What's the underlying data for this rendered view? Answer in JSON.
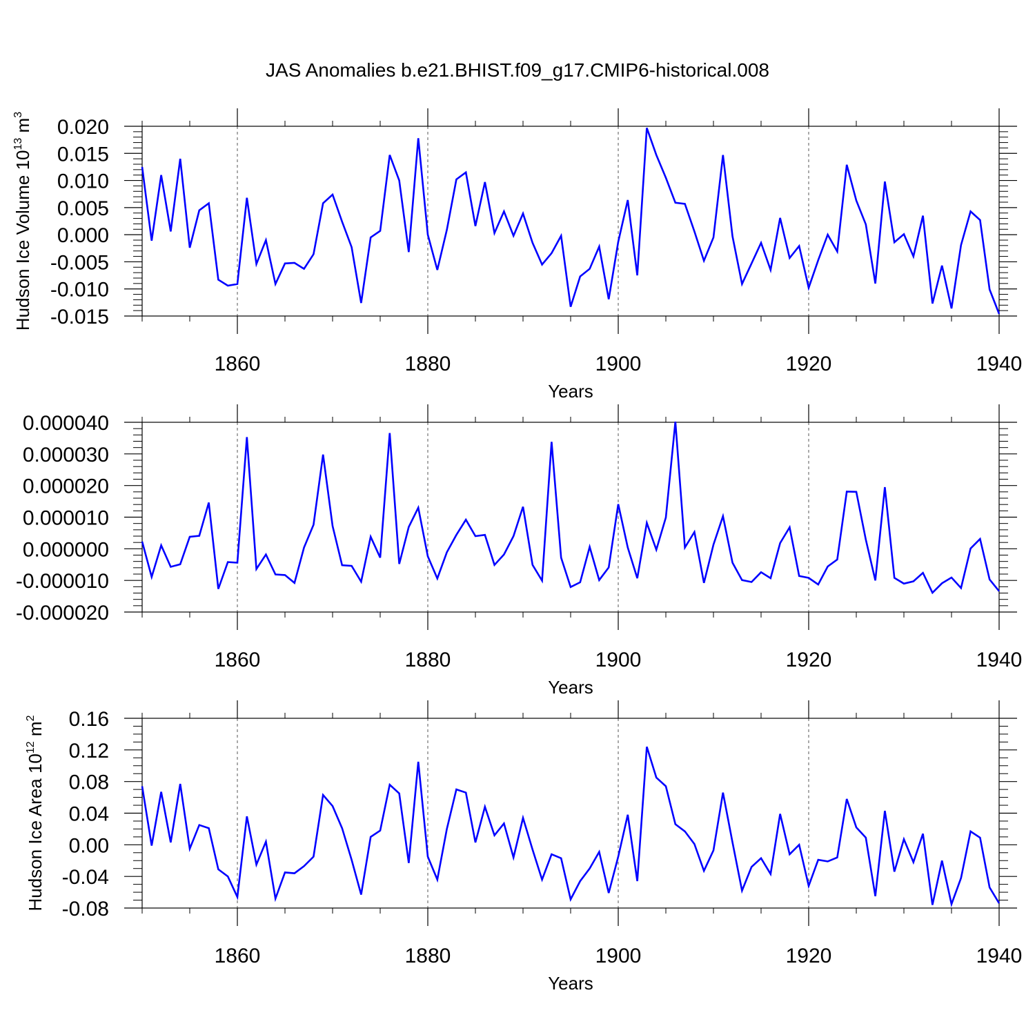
{
  "title": "JAS Anomalies b.e21.BHIST.f09_g17.CMIP6-historical.008",
  "line_color": "#0000ff",
  "chart_data": [
    {
      "type": "line",
      "name": "volume-panel",
      "title": "",
      "xlabel": "Years",
      "ylabel": "Hudson Ice Volume 10",
      "ylabel_exp": "13",
      "ylabel_unit": " m",
      "ylabel_unit_exp": "3",
      "xlim": [
        1850,
        1940
      ],
      "ylim": [
        -0.015,
        0.02
      ],
      "yticks": [
        -0.015,
        -0.01,
        -0.005,
        0.0,
        0.005,
        0.01,
        0.015,
        0.02
      ],
      "ytick_labels": [
        "-0.015",
        "-0.010",
        "-0.005",
        "0.000",
        "0.005",
        "0.010",
        "0.015",
        "0.020"
      ],
      "xticks": [
        1860,
        1880,
        1900,
        1920,
        1940
      ],
      "xtick_labels": [
        "1860",
        "1880",
        "1900",
        "1920",
        "1940"
      ],
      "grid_x": [
        1860,
        1880,
        1900,
        1920
      ],
      "series": [
        {
          "name": "Hudson Ice Volume",
          "x_start": 1850,
          "values": [
            0.0125,
            -0.0011,
            0.011,
            0.0006,
            0.014,
            -0.0024,
            0.0045,
            0.0058,
            -0.0083,
            -0.0094,
            -0.0091,
            0.0068,
            -0.0054,
            -0.001,
            -0.0091,
            -0.0053,
            -0.0052,
            -0.0063,
            -0.0036,
            0.0058,
            0.0074,
            0.0024,
            -0.0023,
            -0.0126,
            -0.0005,
            0.0007,
            0.0147,
            0.01,
            -0.0032,
            0.0178,
            0.0,
            -0.0065,
            0.0009,
            0.0102,
            0.0115,
            0.0016,
            0.0097,
            0.0003,
            0.0043,
            -0.0002,
            0.0039,
            -0.0015,
            -0.0055,
            -0.0034,
            -0.0002,
            -0.0133,
            -0.0077,
            -0.0063,
            -0.0022,
            -0.0119,
            -0.0013,
            0.0064,
            -0.0075,
            0.0197,
            0.0147,
            0.0105,
            0.0059,
            0.0057,
            0.0006,
            -0.0048,
            -0.0005,
            0.0147,
            -0.0003,
            -0.0091,
            -0.0053,
            -0.0015,
            -0.0065,
            0.0031,
            -0.0043,
            -0.0021,
            -0.0098,
            -0.0047,
            0.0,
            -0.0031,
            0.0129,
            0.0063,
            0.0019,
            -0.009,
            0.0098,
            -0.0014,
            0.0001,
            -0.004,
            0.0035,
            -0.0127,
            -0.0057,
            -0.0136,
            -0.0019,
            0.0043,
            0.0027,
            -0.0101,
            -0.0146
          ]
        }
      ]
    },
    {
      "type": "line",
      "name": "middle-panel",
      "title": "",
      "xlabel": "Years",
      "ylabel": "",
      "ylabel_exp": "",
      "ylabel_unit": "",
      "ylabel_unit_exp": "",
      "xlim": [
        1850,
        1940
      ],
      "ylim": [
        -2e-05,
        4e-05
      ],
      "yticks": [
        -2e-05,
        -1e-05,
        0.0,
        1e-05,
        2e-05,
        3e-05,
        4e-05
      ],
      "ytick_labels": [
        "-0.000020",
        "-0.000010",
        "0.000000",
        "0.000010",
        "0.000020",
        "0.000030",
        "0.000040"
      ],
      "xticks": [
        1860,
        1880,
        1900,
        1920,
        1940
      ],
      "xtick_labels": [
        "1860",
        "1880",
        "1900",
        "1920",
        "1940"
      ],
      "grid_x": [
        1860,
        1880,
        1900,
        1920
      ],
      "series": [
        {
          "name": "anomaly",
          "x_start": 1850,
          "values": [
            2.3e-06,
            -8.9e-06,
            1.1e-06,
            -5.7e-06,
            -4.9e-06,
            3.8e-06,
            4.1e-06,
            1.46e-05,
            -1.27e-05,
            -4.2e-06,
            -4.4e-06,
            3.53e-05,
            -6.4e-06,
            -1.8e-06,
            -8.1e-06,
            -8.3e-06,
            -1.08e-05,
            4e-07,
            7.6e-06,
            2.98e-05,
            7.2e-06,
            -5.2e-06,
            -5.4e-06,
            -1.04e-05,
            3.8e-06,
            -2.8e-06,
            3.66e-05,
            -4.8e-06,
            6.9e-06,
            1.3e-05,
            -2.4e-06,
            -9.4e-06,
            -1.1e-06,
            4.4e-06,
            9.2e-06,
            4e-06,
            4.4e-06,
            -5.1e-06,
            -1.8e-06,
            4e-06,
            1.33e-05,
            -5.1e-06,
            -1.01e-05,
            3.38e-05,
            -2.8e-06,
            -1.21e-05,
            -1.06e-05,
            6e-07,
            -9.9e-06,
            -5.9e-06,
            1.41e-05,
            4e-07,
            -9.3e-06,
            8.2e-06,
            -3e-07,
            9.9e-06,
            4.02e-05,
            4e-07,
            5.3e-06,
            -1.08e-05,
            1.3e-06,
            1.03e-05,
            -4.4e-06,
            -9.9e-06,
            -1.05e-05,
            -7.4e-06,
            -9.3e-06,
            1.8e-06,
            6.8e-06,
            -8.6e-06,
            -9.2e-06,
            -1.13e-05,
            -5.6e-06,
            -3.4e-06,
            1.81e-05,
            1.8e-05,
            2.9e-06,
            -1e-05,
            1.95e-05,
            -9.2e-06,
            -1.1e-05,
            -1.03e-05,
            -7.6e-06,
            -1.39e-05,
            -1.09e-05,
            -9.1e-06,
            -1.24e-05,
            1e-07,
            3.1e-06,
            -9.7e-06,
            -1.34e-05
          ]
        }
      ]
    },
    {
      "type": "line",
      "name": "area-panel",
      "title": "",
      "xlabel": "Years",
      "ylabel": "Hudson Ice Area 10",
      "ylabel_exp": "12",
      "ylabel_unit": " m",
      "ylabel_unit_exp": "2",
      "xlim": [
        1850,
        1940
      ],
      "ylim": [
        -0.08,
        0.16
      ],
      "yticks": [
        -0.08,
        -0.04,
        0.0,
        0.04,
        0.08,
        0.12,
        0.16
      ],
      "ytick_labels": [
        "-0.08",
        "-0.04",
        "0.00",
        "0.04",
        "0.08",
        "0.12",
        "0.16"
      ],
      "xticks": [
        1860,
        1880,
        1900,
        1920,
        1940
      ],
      "xtick_labels": [
        "1860",
        "1880",
        "1900",
        "1920",
        "1940"
      ],
      "grid_x": [
        1860,
        1880,
        1900,
        1920
      ],
      "series": [
        {
          "name": "Hudson Ice Area",
          "x_start": 1850,
          "values": [
            0.074,
            -0.001,
            0.067,
            0.003,
            0.077,
            -0.005,
            0.025,
            0.021,
            -0.031,
            -0.04,
            -0.066,
            0.036,
            -0.025,
            0.004,
            -0.068,
            -0.035,
            -0.036,
            -0.027,
            -0.015,
            0.063,
            0.049,
            0.021,
            -0.019,
            -0.063,
            0.01,
            0.018,
            0.076,
            0.065,
            -0.023,
            0.105,
            -0.015,
            -0.044,
            0.02,
            0.07,
            0.066,
            0.003,
            0.048,
            0.012,
            0.027,
            -0.016,
            0.034,
            -0.006,
            -0.044,
            -0.012,
            -0.017,
            -0.069,
            -0.046,
            -0.03,
            -0.009,
            -0.061,
            -0.015,
            0.038,
            -0.046,
            0.124,
            0.085,
            0.074,
            0.026,
            0.017,
            0.001,
            -0.033,
            -0.007,
            0.066,
            0.003,
            -0.058,
            -0.028,
            -0.017,
            -0.037,
            0.039,
            -0.012,
            0.0,
            -0.052,
            -0.019,
            -0.021,
            -0.016,
            0.058,
            0.022,
            0.009,
            -0.065,
            0.043,
            -0.034,
            0.007,
            -0.022,
            0.014,
            -0.076,
            -0.02,
            -0.075,
            -0.042,
            0.017,
            0.009,
            -0.054,
            -0.074
          ]
        }
      ]
    }
  ]
}
